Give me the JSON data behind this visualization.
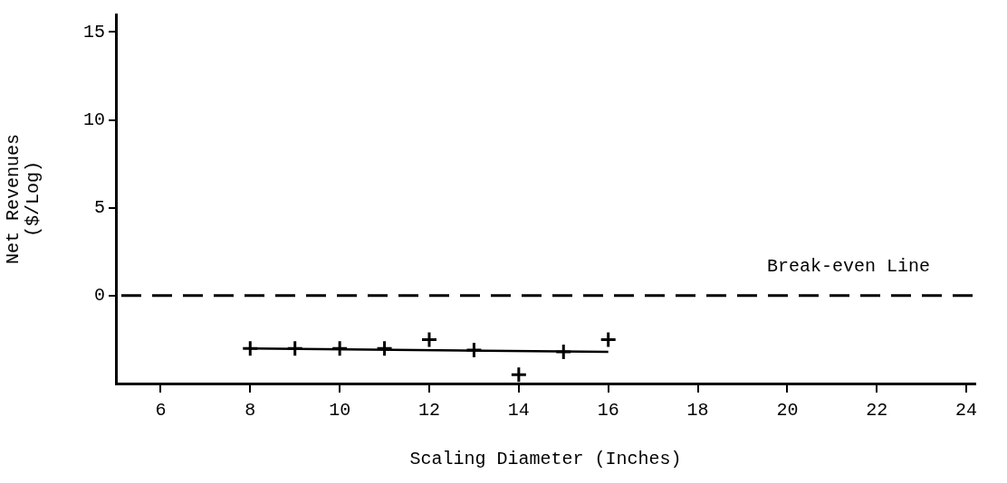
{
  "chart_data": {
    "type": "scatter",
    "xlabel": "Scaling Diameter (Inches)",
    "ylabel": "Net Revenues\n($/Log)",
    "x": [
      8,
      9,
      10,
      11,
      12,
      13,
      14,
      15,
      16
    ],
    "series": [
      {
        "type": "scatter",
        "color": "#000000",
        "marker": "cross",
        "values": [
          -3.0,
          -3.0,
          -3.0,
          -3.0,
          -2.5,
          -3.1,
          -4.5,
          -3.2,
          -2.5
        ]
      },
      {
        "type": "line",
        "color": "#000000",
        "x": [
          8,
          16
        ],
        "values": [
          -3.0,
          -3.2
        ],
        "marker": "none",
        "line_style": "solid"
      }
    ],
    "xlim": [
      5,
      24.2
    ],
    "xticks": [
      6,
      8,
      10,
      12,
      14,
      16,
      18,
      20,
      22,
      24
    ],
    "ylim": [
      -5,
      16
    ],
    "yticks": [
      0,
      5,
      10,
      15
    ],
    "ref_lines": [
      {
        "axis": "y",
        "value": 0,
        "label": "Break-even Line",
        "color": "#000000",
        "line_style": "dashed"
      }
    ],
    "grid": false,
    "legend": false
  }
}
